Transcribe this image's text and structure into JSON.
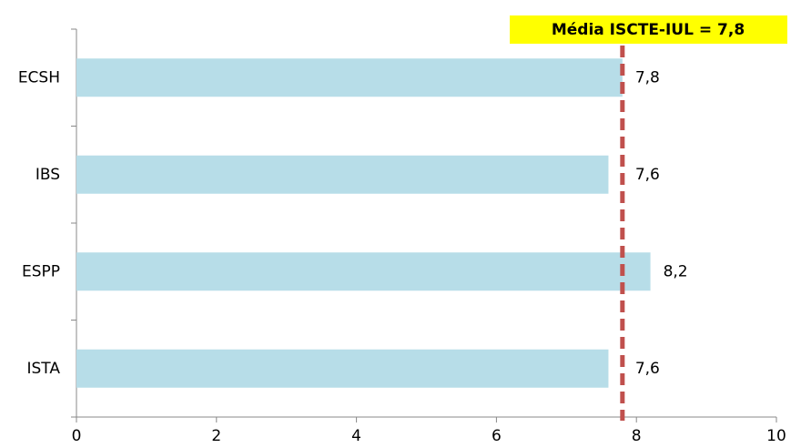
{
  "chart_data": {
    "type": "barh",
    "categories": [
      "ECSH",
      "IBS",
      "ESPP",
      "ISTA"
    ],
    "values": [
      7.8,
      7.6,
      8.2,
      7.6
    ],
    "value_labels": [
      "7,8",
      "7,6",
      "8,2",
      "7,6"
    ],
    "color": "#b7dde8",
    "xlim": [
      0,
      10
    ],
    "xticks": [
      0,
      2,
      4,
      6,
      8,
      10
    ],
    "reference_line": {
      "value": 7.8,
      "label": "Média ISCTE-IUL = 7,8",
      "color": "#c0504d",
      "label_background": "#ffff00"
    }
  }
}
